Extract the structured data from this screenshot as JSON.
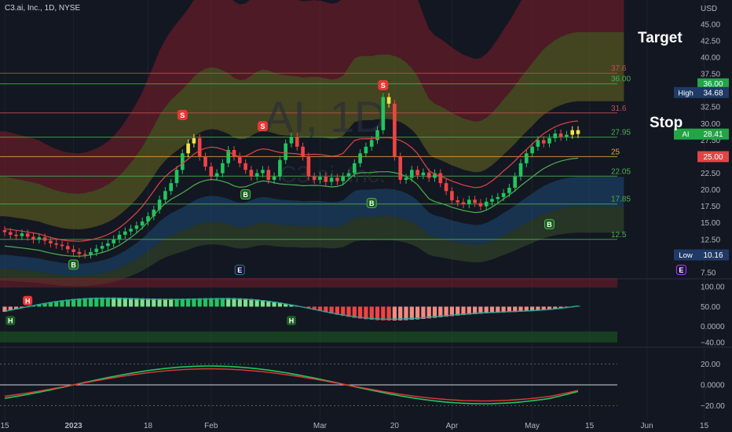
{
  "header": {
    "symbol_line": "C3.ai, Inc., 1D, NYSE"
  },
  "watermark": {
    "ticker": "AI, 1D",
    "company": "C3.ai, Inc."
  },
  "annotations": {
    "target": "Target",
    "stop": "Stop"
  },
  "colors": {
    "background": "#131722",
    "up": "#22c55e",
    "down": "#ef4444",
    "highlight": "#f5e04a",
    "band_red": "#7f1d2a",
    "band_yellow": "#6b6a1f",
    "band_blue": "#1e4a75",
    "level_red": "#c0504d",
    "level_green": "#4caf50",
    "level_orange": "#e2a33c"
  },
  "chart_data": [
    {
      "type": "candlestick",
      "title": "C3.ai, Inc., 1D, NYSE",
      "currency": "USD",
      "y_ticks": [
        "45.00",
        "42.50",
        "40.00",
        "37.50",
        "35.00",
        "32.50",
        "30.00",
        "27.50",
        "25.00",
        "22.50",
        "20.00",
        "17.50",
        "15.00",
        "12.50",
        "10.00",
        "7.50"
      ],
      "ylim": [
        6.9,
        47
      ],
      "x_ticks": [
        {
          "label": "15",
          "i": 0
        },
        {
          "label": "2023",
          "i": 12
        },
        {
          "label": "18",
          "i": 25
        },
        {
          "label": "Feb",
          "i": 36
        },
        {
          "label": "Mar",
          "i": 55
        },
        {
          "label": "20",
          "i": 68
        },
        {
          "label": "Apr",
          "i": 78
        },
        {
          "label": "May",
          "i": 92
        },
        {
          "label": "15",
          "i": 102
        },
        {
          "label": "Jun",
          "i": 112
        },
        {
          "label": "15",
          "i": 122
        }
      ],
      "close": [
        13.6,
        13.2,
        13.0,
        13.4,
        12.9,
        12.5,
        12.8,
        12.3,
        11.9,
        11.7,
        11.5,
        11.0,
        10.6,
        10.3,
        10.2,
        10.6,
        11.1,
        11.5,
        11.9,
        12.5,
        13.2,
        13.7,
        14.1,
        14.6,
        15.2,
        16.0,
        17.0,
        18.5,
        19.8,
        21.0,
        23.0,
        25.5,
        27.0,
        27.8,
        25.0,
        23.5,
        22.0,
        22.5,
        24.0,
        26.0,
        25.0,
        24.0,
        23.0,
        22.0,
        22.5,
        23.0,
        21.5,
        22.0,
        24.5,
        27.0,
        28.0,
        26.5,
        25.0,
        22.0,
        21.5,
        22.0,
        21.2,
        21.8,
        21.3,
        22.0,
        22.5,
        24.0,
        25.5,
        26.5,
        27.5,
        29.0,
        34.0,
        33.0,
        25.0,
        21.5,
        21.8,
        23.0,
        22.2,
        22.6,
        21.8,
        22.5,
        21.0,
        19.8,
        18.4,
        18.1,
        17.8,
        18.5,
        18.0,
        17.5,
        18.2,
        18.6,
        18.9,
        19.5,
        20.3,
        22.0,
        24.0,
        25.5,
        26.5,
        27.5,
        27.0,
        27.8,
        28.5,
        28.0,
        28.3,
        29.0,
        28.41
      ],
      "levels": [
        {
          "value": 37.6,
          "label": "37.6",
          "color": "red"
        },
        {
          "value": 36.0,
          "label": "36.00",
          "color": "green"
        },
        {
          "value": 31.6,
          "label": "31.6",
          "color": "red"
        },
        {
          "value": 27.95,
          "label": "27.95",
          "color": "green"
        },
        {
          "value": 25.0,
          "label": "25",
          "color": "orange"
        },
        {
          "value": 22.05,
          "label": "22.05",
          "color": "green"
        },
        {
          "value": 17.85,
          "label": "17.85",
          "color": "green"
        },
        {
          "value": 12.5,
          "label": "12.5",
          "color": "green"
        }
      ],
      "price_tags": [
        {
          "label": "",
          "value": "36.00",
          "y": 36.0,
          "color": "#22a447"
        },
        {
          "label": "High",
          "value": "34.68",
          "y": 34.68,
          "color": "#1f3a66"
        },
        {
          "label": "AI",
          "value": "28.41",
          "y": 28.41,
          "color": "#22a447"
        },
        {
          "label": "",
          "value": "25.00",
          "y": 25.0,
          "color": "#e04545"
        },
        {
          "label": "Low",
          "value": "10.16",
          "y": 10.16,
          "color": "#1f3a66"
        }
      ],
      "signals": [
        {
          "text": "B",
          "i": 12,
          "y": 8.7
        },
        {
          "text": "S",
          "i": 31,
          "y": 31.3
        },
        {
          "text": "S",
          "i": 45,
          "y": 29.6
        },
        {
          "text": "B",
          "i": 42,
          "y": 19.3
        },
        {
          "text": "B",
          "i": 64,
          "y": 18.0
        },
        {
          "text": "S",
          "i": 66,
          "y": 35.8
        },
        {
          "text": "B",
          "i": 95,
          "y": 14.8
        },
        {
          "text": "E",
          "i": 41,
          "y": 7.9
        },
        {
          "text": "E",
          "i": 118,
          "y": 7.9
        }
      ]
    },
    {
      "type": "histogram",
      "y_ticks": [
        "100.00",
        "50.00",
        "0.0000",
        "−40.00"
      ],
      "ylim": [
        -40,
        110
      ],
      "markers": [
        {
          "text": "H",
          "i": 4,
          "y": 65
        },
        {
          "text": "H",
          "i": 1,
          "y": 15
        },
        {
          "text": "H",
          "i": 50,
          "y": 15
        }
      ]
    },
    {
      "type": "line",
      "y_ticks": [
        "20.00",
        "0.0000",
        "−20.00"
      ],
      "ylim": [
        -30,
        30
      ]
    }
  ]
}
